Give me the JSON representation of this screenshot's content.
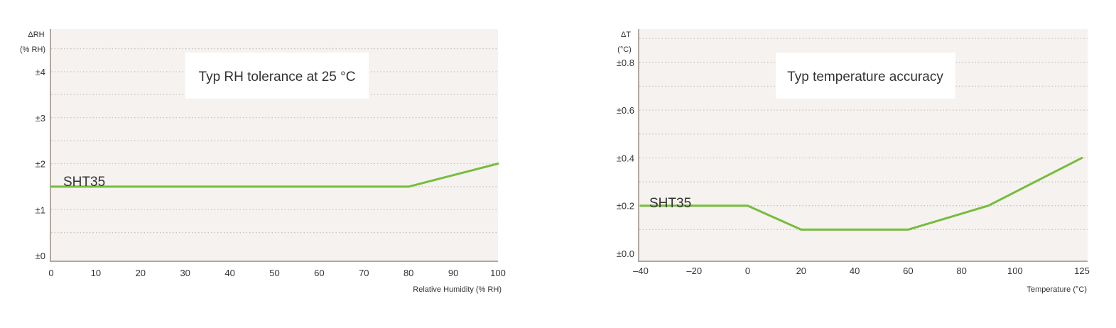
{
  "colors": {
    "plot_background": "#f5f2ef",
    "axis": "#b3a8a3",
    "grid": "#c8c2bd",
    "series": "#76bd3c",
    "title_box": "#ffffff",
    "text": "#333333"
  },
  "chart_data": [
    {
      "type": "line",
      "title": "Typ RH tolerance at 25 °C",
      "xlabel": "Relative Humidity (% RH)",
      "ylabel": [
        "ΔRH",
        "(% RH)"
      ],
      "xlim": [
        0,
        100
      ],
      "ylim": [
        0,
        4.75
      ],
      "xticks": [
        0,
        10,
        20,
        30,
        40,
        50,
        60,
        70,
        80,
        90,
        100
      ],
      "xtick_labels": [
        "0",
        "10",
        "20",
        "30",
        "40",
        "50",
        "60",
        "70",
        "80",
        "90",
        "100"
      ],
      "yticks": [
        0,
        1,
        2,
        3,
        4
      ],
      "ytick_labels": [
        "±0",
        "±1",
        "±2",
        "±3",
        "±4"
      ],
      "grid": true,
      "grid_minor_y": 0.5,
      "series": [
        {
          "name": "SHT35",
          "x": [
            0,
            80,
            100
          ],
          "y": [
            1.5,
            1.5,
            2.0
          ]
        }
      ]
    },
    {
      "type": "line",
      "title": "Typ temperature accuracy",
      "xlabel": "Temperature (°C)",
      "ylabel": [
        "ΔT",
        "(°C)"
      ],
      "xlim": [
        -40,
        125
      ],
      "ylim": [
        0,
        0.95
      ],
      "xticks": [
        -40,
        -20,
        0,
        20,
        40,
        60,
        80,
        100,
        125
      ],
      "xtick_labels": [
        "–40",
        "–20",
        "0",
        "20",
        "40",
        "60",
        "80",
        "100",
        "125"
      ],
      "yticks": [
        0,
        0.2,
        0.4,
        0.6,
        0.8
      ],
      "ytick_labels": [
        "±0.0",
        "±0.2",
        "±0.4",
        "±0.6",
        "±0.8"
      ],
      "grid": true,
      "grid_minor_y": 0.1,
      "series": [
        {
          "name": "SHT35",
          "x": [
            -40,
            0,
            20,
            60,
            90,
            125
          ],
          "y": [
            0.2,
            0.2,
            0.1,
            0.1,
            0.2,
            0.4
          ]
        }
      ]
    }
  ]
}
